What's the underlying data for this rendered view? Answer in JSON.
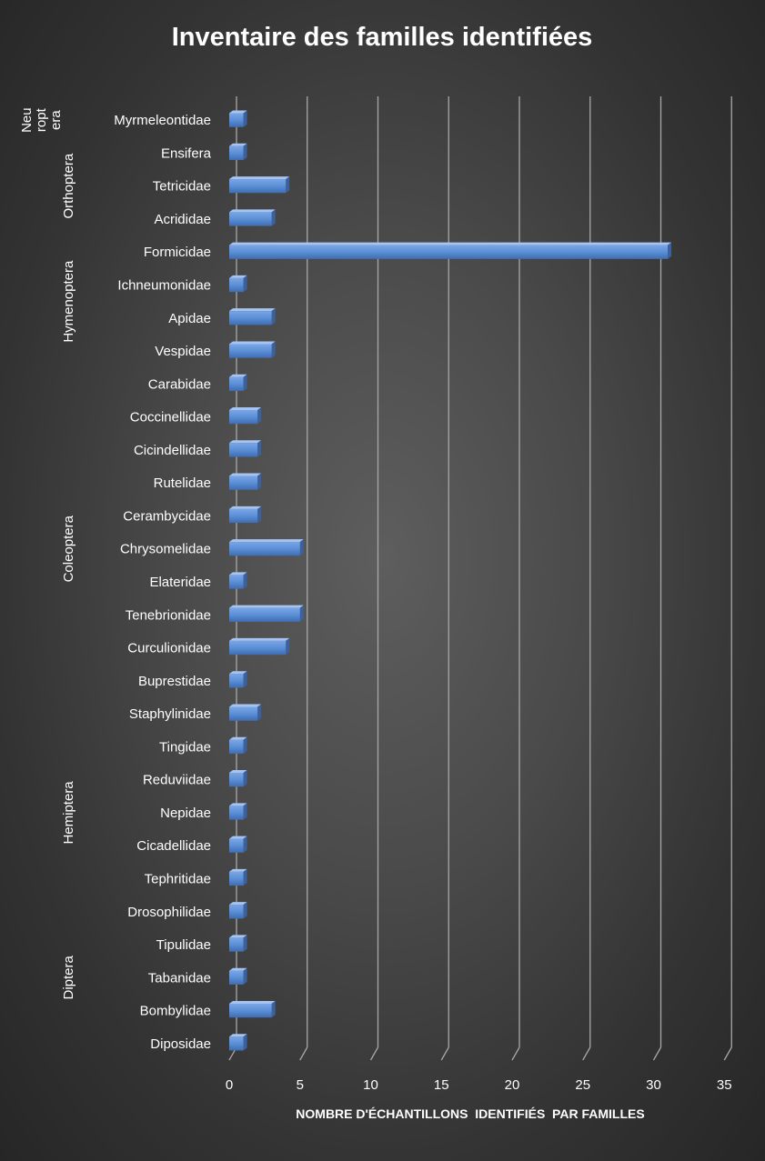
{
  "chart_data": {
    "type": "bar",
    "orientation": "horizontal",
    "title": "Inventaire des familles identifiées",
    "xlabel": "NOMBRE D'ÉCHANTILLONS  IDENTIFIÉS  PAR FAMILLES",
    "ylabel": "",
    "xlim": [
      0,
      35
    ],
    "xticks": [
      "0",
      "5",
      "10",
      "15",
      "20",
      "25",
      "30",
      "35"
    ],
    "grid": true,
    "legend": "none",
    "bar_color": "#5b8fd6",
    "categories": [
      "Myrmeleontidae",
      "Ensifera",
      "Tetricidae",
      "Acrididae",
      "Formicidae",
      "Ichneumonidae",
      "Apidae",
      "Vespidae",
      "Carabidae",
      "Coccinellidae",
      "Cicindellidae",
      "Rutelidae",
      "Cerambycidae",
      "Chrysomelidae",
      "Elateridae",
      "Tenebrionidae",
      "Curculionidae",
      "Buprestidae",
      "Staphylinidae",
      "Tingidae",
      "Reduviidae",
      "Nepidae",
      "Cicadellidae",
      "Tephritidae",
      "Drosophilidae",
      "Tipulidae",
      "Tabanidae",
      "Bombylidae",
      "Diposidae"
    ],
    "values": [
      1,
      1,
      4,
      3,
      31,
      1,
      3,
      3,
      1,
      2,
      2,
      2,
      2,
      5,
      1,
      5,
      4,
      1,
      2,
      1,
      1,
      1,
      1,
      1,
      1,
      1,
      1,
      3,
      1
    ],
    "groups": [
      {
        "lines": [
          "Neu",
          "ropt",
          "era"
        ],
        "first": 0,
        "last": 0
      },
      {
        "lines": [
          "Orthoptera"
        ],
        "first": 1,
        "last": 3
      },
      {
        "lines": [
          "Hymenoptera"
        ],
        "first": 4,
        "last": 7
      },
      {
        "lines": [
          "Coleoptera"
        ],
        "first": 8,
        "last": 18
      },
      {
        "lines": [
          "Hemiptera"
        ],
        "first": 19,
        "last": 23
      },
      {
        "lines": [
          "Diptera"
        ],
        "first": 24,
        "last": 28
      }
    ]
  }
}
